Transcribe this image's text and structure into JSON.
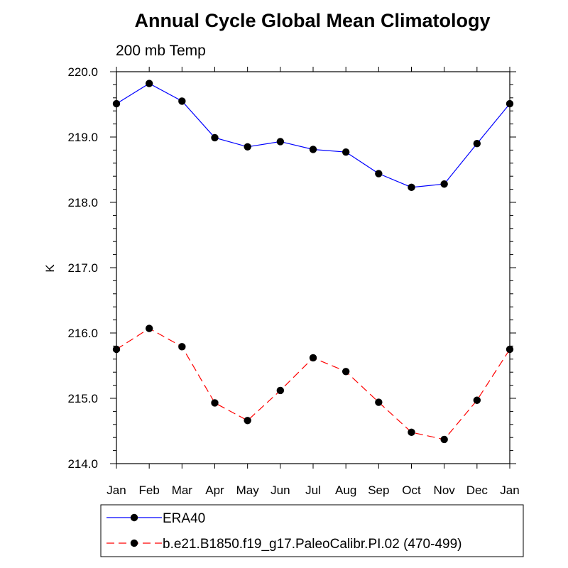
{
  "chart_data": {
    "type": "line",
    "title": "Annual Cycle Global Mean Climatology",
    "subtitle": "200 mb Temp",
    "xlabel": "",
    "ylabel": "K",
    "categories": [
      "Jan",
      "Feb",
      "Mar",
      "Apr",
      "May",
      "Jun",
      "Jul",
      "Aug",
      "Sep",
      "Oct",
      "Nov",
      "Dec",
      "Jan"
    ],
    "y_tick_labels": [
      "214.0",
      "215.0",
      "216.0",
      "217.0",
      "218.0",
      "219.0",
      "220.0"
    ],
    "ylim": [
      214.0,
      220.0
    ],
    "grid": false,
    "legend_position": "bottom",
    "series": [
      {
        "name": "ERA40",
        "color": "#0000ff",
        "line_style": "solid",
        "marker": "filled-circle",
        "values": [
          219.51,
          219.82,
          219.55,
          218.99,
          218.85,
          218.93,
          218.81,
          218.77,
          218.44,
          218.23,
          218.28,
          218.9,
          219.51
        ]
      },
      {
        "name": "b.e21.B1850.f19_g17.PaleoCalibr.PI.02 (470-499)",
        "color": "#ff0000",
        "line_style": "dashed",
        "marker": "filled-circle",
        "values": [
          215.75,
          216.07,
          215.79,
          214.93,
          214.66,
          215.12,
          215.62,
          215.41,
          214.94,
          214.48,
          214.37,
          214.97,
          215.75
        ]
      }
    ]
  }
}
